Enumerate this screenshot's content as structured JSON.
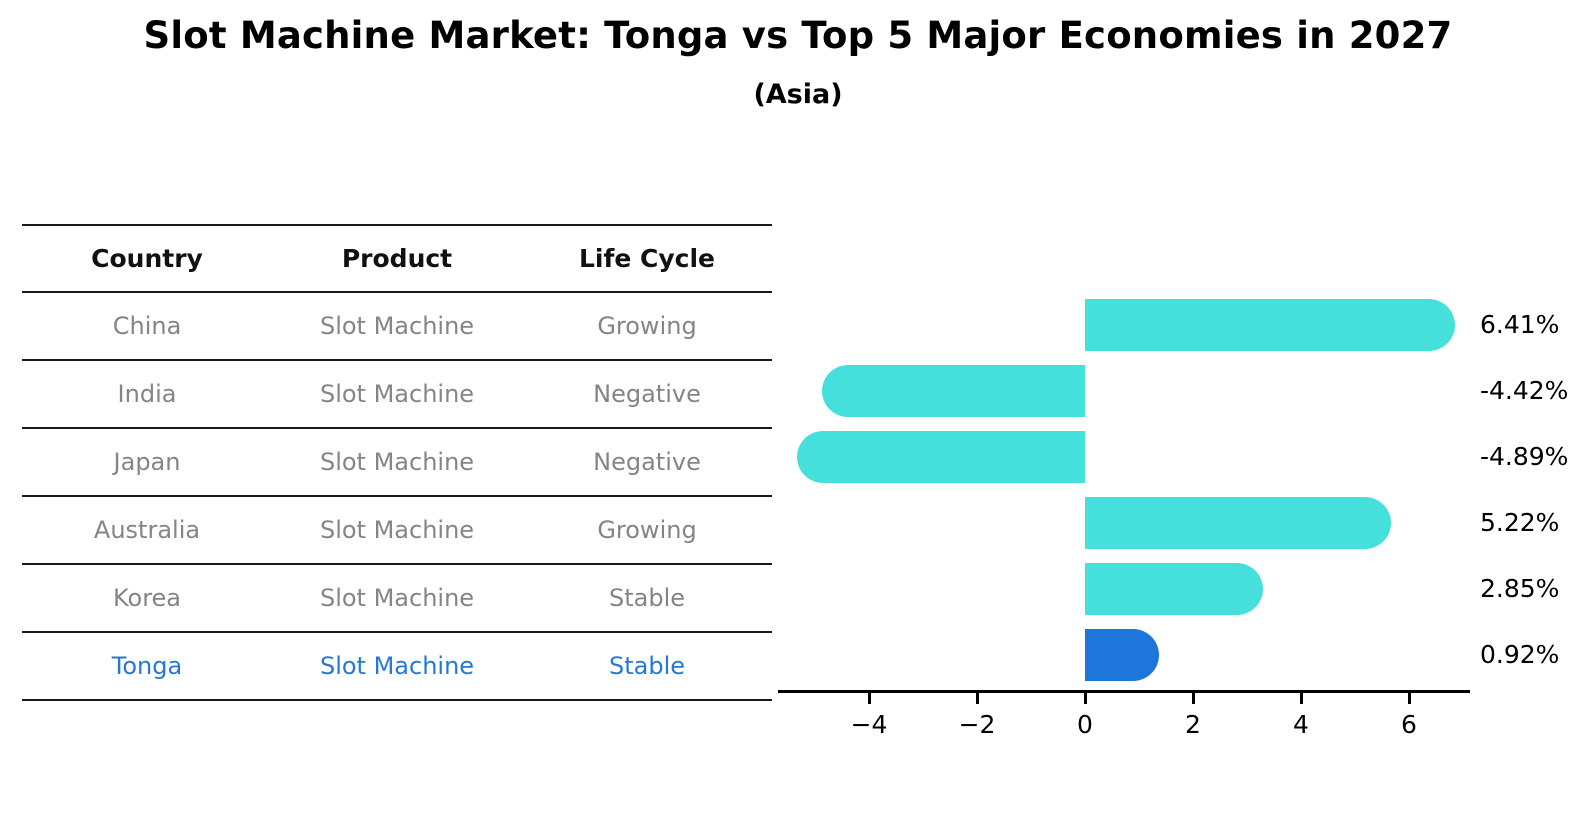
{
  "title": "Slot Machine Market: Tonga vs Top 5 Major Economies in 2027",
  "subtitle": "(Asia)",
  "table": {
    "headers": [
      "Country",
      "Product",
      "Life Cycle"
    ],
    "rows": [
      {
        "country": "China",
        "product": "Slot Machine",
        "life_cycle": "Growing",
        "highlight": false
      },
      {
        "country": "India",
        "product": "Slot Machine",
        "life_cycle": "Negative",
        "highlight": false
      },
      {
        "country": "Japan",
        "product": "Slot Machine",
        "life_cycle": "Negative",
        "highlight": false
      },
      {
        "country": "Australia",
        "product": "Slot Machine",
        "life_cycle": "Growing",
        "highlight": false
      },
      {
        "country": "Korea",
        "product": "Slot Machine",
        "life_cycle": "Stable",
        "highlight": false
      },
      {
        "country": "Tonga",
        "product": "Slot Machine",
        "life_cycle": "Stable",
        "highlight": true
      }
    ]
  },
  "chart_data": {
    "type": "bar",
    "orientation": "horizontal",
    "categories": [
      "China",
      "India",
      "Japan",
      "Australia",
      "Korea",
      "Tonga"
    ],
    "values": [
      6.41,
      -4.42,
      -4.89,
      5.22,
      2.85,
      0.92
    ],
    "value_labels": [
      "6.41%",
      "-4.42%",
      "-4.89%",
      "5.22%",
      "2.85%",
      "0.92%"
    ],
    "xticks": [
      -4,
      -2,
      0,
      2,
      4,
      6
    ],
    "xlim": [
      -5.7,
      7.1
    ],
    "grid": false,
    "legend": "none",
    "title": "",
    "xlabel": "",
    "ylabel": "",
    "bar_color": "#45e0dc",
    "highlight_color": "#1e76db",
    "highlight_index": 5,
    "highlight_edge_style": "dotted"
  },
  "colors": {
    "text_gray": "#858585",
    "text_blue": "#2679d2",
    "table_line": "#1a1a1a",
    "axis": "#000000",
    "background": "#ffffff"
  }
}
